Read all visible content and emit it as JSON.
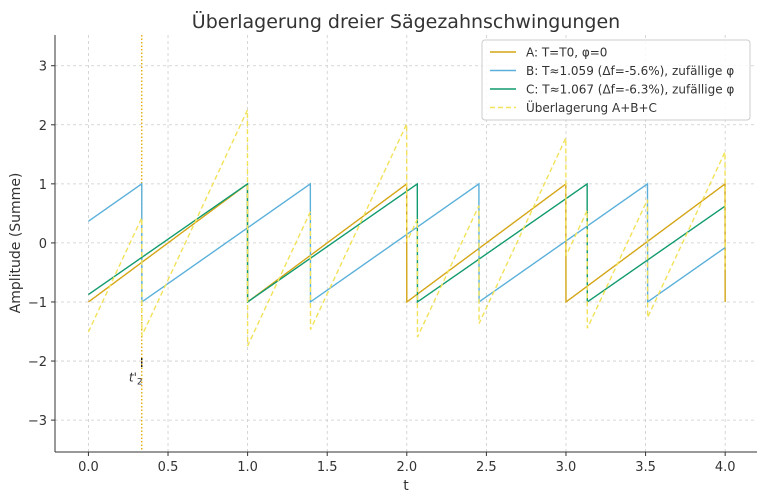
{
  "chart_data": {
    "type": "line",
    "title": "Überlagerung dreier Sägezahnschwingungen",
    "xlabel": "t",
    "ylabel": "Amplitude (Summe)",
    "xlim": [
      -0.21,
      4.2
    ],
    "ylim": [
      -3.54,
      3.52
    ],
    "xticks": [
      "0.0",
      "0.5",
      "1.0",
      "1.5",
      "2.0",
      "2.5",
      "3.0",
      "3.5",
      "4.0"
    ],
    "yticks": [
      "−3",
      "−2",
      "−1",
      "0",
      "1",
      "2",
      "3"
    ],
    "grid": true,
    "legend_position": "top-right",
    "t_range": [
      0,
      4
    ],
    "series": [
      {
        "name": "A: T=T0, φ=0",
        "period": 1.0,
        "value_at_t0": -1.0,
        "color": "#D4A516",
        "style": "solid"
      },
      {
        "name": "B: T≈1.059 (Δf=-5.6%), zufällige φ",
        "period": 1.059,
        "value_at_t0": 0.367,
        "color": "#5AB0DA",
        "style": "solid"
      },
      {
        "name": "C: T≈1.067 (Δf=-6.3%), zufällige φ",
        "period": 1.067,
        "value_at_t0": -0.874,
        "color": "#109A6E",
        "style": "solid"
      },
      {
        "name": "Überlagerung A+B+C",
        "sum_of": [
          "A",
          "B",
          "C"
        ],
        "color": "#F2E25A",
        "style": "dashed"
      }
    ],
    "annotation": {
      "label": "t'",
      "subscript": "2",
      "t": 0.335,
      "y_marker": [
        -1.95,
        -2.1
      ],
      "line_color": "#E0A800"
    }
  }
}
